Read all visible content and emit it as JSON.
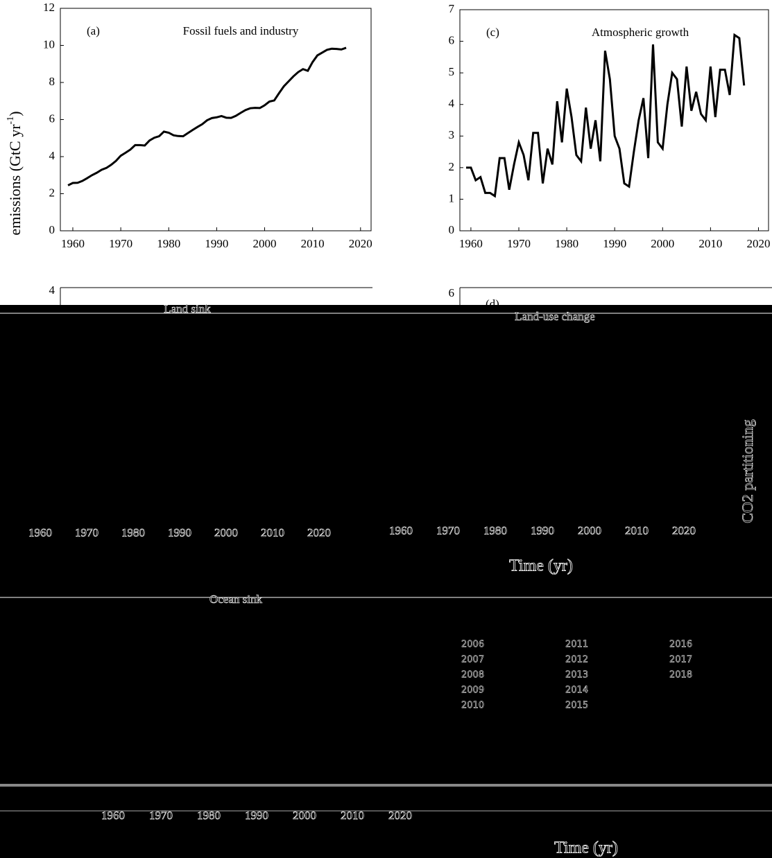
{
  "chart_data": [
    {
      "type": "line",
      "panel": "(a)",
      "title": "Fossil fuels and industry",
      "ylabel": "emissions (GtC yr",
      "ylabel_sup": "-1",
      "ylabel_end": ")",
      "x": [
        1959,
        1960,
        1961,
        1962,
        1963,
        1964,
        1965,
        1966,
        1967,
        1968,
        1969,
        1970,
        1971,
        1972,
        1973,
        1974,
        1975,
        1976,
        1977,
        1978,
        1979,
        1980,
        1981,
        1982,
        1983,
        1984,
        1985,
        1986,
        1987,
        1988,
        1989,
        1990,
        1991,
        1992,
        1993,
        1994,
        1995,
        1996,
        1997,
        1998,
        1999,
        2000,
        2001,
        2002,
        2003,
        2004,
        2005,
        2006,
        2007,
        2008,
        2009,
        2010,
        2011,
        2012,
        2013,
        2014,
        2015,
        2016,
        2017
      ],
      "values": [
        2.45,
        2.58,
        2.59,
        2.69,
        2.84,
        3.0,
        3.13,
        3.29,
        3.39,
        3.56,
        3.77,
        4.05,
        4.21,
        4.38,
        4.62,
        4.62,
        4.6,
        4.87,
        5.02,
        5.1,
        5.35,
        5.29,
        5.15,
        5.11,
        5.1,
        5.27,
        5.44,
        5.6,
        5.75,
        5.96,
        6.08,
        6.12,
        6.19,
        6.1,
        6.09,
        6.2,
        6.36,
        6.51,
        6.61,
        6.63,
        6.62,
        6.77,
        6.97,
        7.03,
        7.42,
        7.79,
        8.06,
        8.33,
        8.56,
        8.72,
        8.63,
        9.1,
        9.46,
        9.61,
        9.76,
        9.82,
        9.81,
        9.78,
        9.87
      ],
      "color": "#000000",
      "xlim": [
        1957.4,
        2022.2
      ],
      "xticks": [
        1960,
        1970,
        1980,
        1990,
        2000,
        2010,
        2020
      ],
      "ylim": [
        0,
        12
      ],
      "yticks": [
        0,
        2,
        4,
        6,
        8,
        10,
        12
      ]
    },
    {
      "type": "line",
      "panel": "(c)",
      "title": "Atmospheric growth",
      "x": [
        1959,
        1960,
        1961,
        1962,
        1963,
        1964,
        1965,
        1966,
        1967,
        1968,
        1969,
        1970,
        1971,
        1972,
        1973,
        1974,
        1975,
        1976,
        1977,
        1978,
        1979,
        1980,
        1981,
        1982,
        1983,
        1984,
        1985,
        1986,
        1987,
        1988,
        1989,
        1990,
        1991,
        1992,
        1993,
        1994,
        1995,
        1996,
        1997,
        1998,
        1999,
        2000,
        2001,
        2002,
        2003,
        2004,
        2005,
        2006,
        2007,
        2008,
        2009,
        2010,
        2011,
        2012,
        2013,
        2014,
        2015,
        2016,
        2017
      ],
      "values": [
        2.0,
        2.0,
        1.6,
        1.7,
        1.2,
        1.2,
        1.1,
        2.3,
        2.3,
        1.3,
        2.1,
        2.8,
        2.4,
        1.6,
        3.1,
        3.1,
        1.5,
        2.6,
        2.1,
        4.1,
        2.8,
        4.5,
        3.6,
        2.4,
        2.2,
        3.9,
        2.6,
        3.5,
        2.2,
        5.7,
        4.8,
        3.0,
        2.6,
        1.5,
        1.4,
        2.5,
        3.5,
        4.2,
        2.3,
        5.9,
        2.8,
        2.6,
        4.0,
        5.0,
        4.8,
        3.3,
        5.2,
        3.8,
        4.4,
        3.7,
        3.5,
        5.2,
        3.6,
        5.1,
        5.1,
        4.3,
        6.2,
        6.1,
        4.6
      ],
      "color": "#000000",
      "xlim": [
        1957.7,
        2022.1
      ],
      "xticks": [
        1960,
        1970,
        1980,
        1990,
        2000,
        2010,
        2020
      ],
      "ylim": [
        0,
        7
      ],
      "yticks": [
        0,
        1,
        2,
        3,
        4,
        5,
        6,
        7
      ]
    }
  ],
  "corrupted": {
    "top_ticks": [
      "4",
      "6"
    ],
    "panel_d": "(d)",
    "titles": [
      "Land sink",
      "Land-use change",
      "Ocean sink"
    ],
    "xticks": [
      "1960",
      "1970",
      "1980",
      "1990",
      "2000",
      "2010",
      "2020"
    ],
    "time_label": "Time (yr)",
    "right_label": "CO2 partitioning",
    "legend": [
      "2006",
      "2007",
      "2008",
      "2009",
      "2010",
      "2011",
      "2012",
      "2013",
      "2014",
      "2015",
      "2016",
      "2017",
      "2018"
    ]
  }
}
